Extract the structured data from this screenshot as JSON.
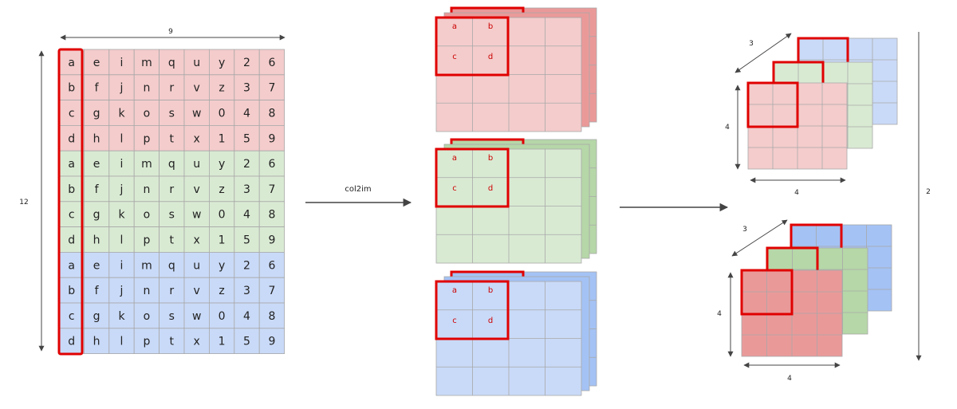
{
  "matrix": {
    "rows": [
      [
        "a",
        "e",
        "i",
        "m",
        "q",
        "u",
        "y",
        "2",
        "6"
      ],
      [
        "b",
        "f",
        "j",
        "n",
        "r",
        "v",
        "z",
        "3",
        "7"
      ],
      [
        "c",
        "g",
        "k",
        "o",
        "s",
        "w",
        "0",
        "4",
        "8"
      ],
      [
        "d",
        "h",
        "l",
        "p",
        "t",
        "x",
        "1",
        "5",
        "9"
      ],
      [
        "a",
        "e",
        "i",
        "m",
        "q",
        "u",
        "y",
        "2",
        "6"
      ],
      [
        "b",
        "f",
        "j",
        "n",
        "r",
        "v",
        "z",
        "3",
        "7"
      ],
      [
        "c",
        "g",
        "k",
        "o",
        "s",
        "w",
        "0",
        "4",
        "8"
      ],
      [
        "d",
        "h",
        "l",
        "p",
        "t",
        "x",
        "1",
        "5",
        "9"
      ],
      [
        "a",
        "e",
        "i",
        "m",
        "q",
        "u",
        "y",
        "2",
        "6"
      ],
      [
        "b",
        "f",
        "j",
        "n",
        "r",
        "v",
        "z",
        "3",
        "7"
      ],
      [
        "c",
        "g",
        "k",
        "o",
        "s",
        "w",
        "0",
        "4",
        "8"
      ],
      [
        "d",
        "h",
        "l",
        "p",
        "t",
        "x",
        "1",
        "5",
        "9"
      ]
    ],
    "width_label": "9",
    "height_label": "12"
  },
  "arrow1_label": "col2im",
  "patch_letters": [
    "a",
    "b",
    "c",
    "d"
  ],
  "volume_dims": {
    "depth": "3",
    "height": "4",
    "width": "4"
  },
  "batch_label": "2",
  "colors": {
    "red_light": "#f4cccc",
    "green_light": "#d9ead3",
    "blue_light": "#c9daf8",
    "red_dark": "#ea9999",
    "green_dark": "#b6d7a8",
    "blue_dark": "#a4c2f4",
    "highlight": "#e00000",
    "grid": "#a8a8a8",
    "patch_text": "#cc0000"
  }
}
